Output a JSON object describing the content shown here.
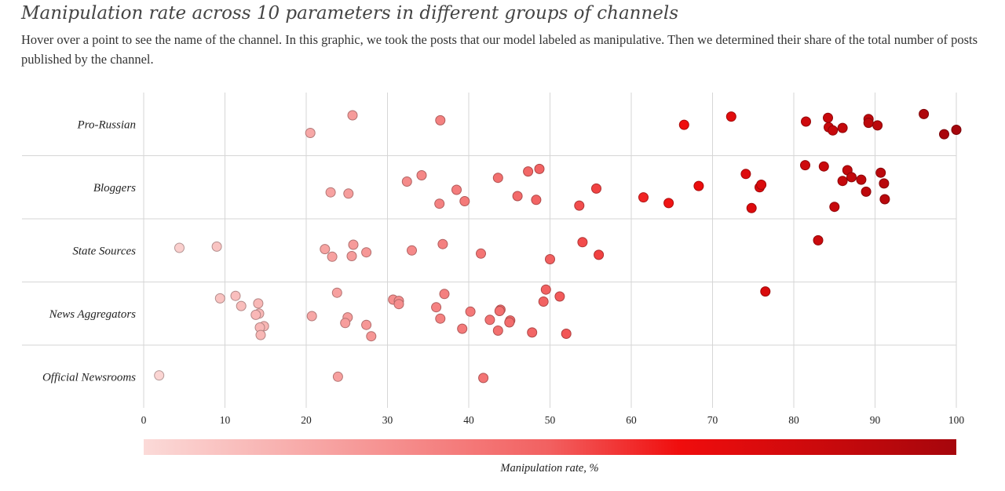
{
  "title": "Manipulation rate across 10 parameters in different groups of channels",
  "subtitle": "Hover over a point to see the name of the channel. In this graphic, we took the posts that our model labeled as manipulative. Then we determined their share of the total number of posts published by the channel.",
  "chart_data": {
    "type": "scatter",
    "categories": [
      "Pro-Russian",
      "Bloggers",
      "State Sources",
      "News Aggregators",
      "Official Newsrooms"
    ],
    "xlim": [
      0,
      100
    ],
    "xticks": [
      0,
      10,
      20,
      30,
      40,
      50,
      60,
      70,
      80,
      90,
      100
    ],
    "grid": true,
    "color_scale": {
      "label": "Manipulation rate, %",
      "domain": [
        0,
        100
      ],
      "colors": [
        "#fbdad8",
        "#f26060",
        "#f00d0d",
        "#a6060c"
      ]
    },
    "series": [
      {
        "category": "Pro-Russian",
        "points": [
          {
            "x": 20.5,
            "jitter": -0.14
          },
          {
            "x": 25.7,
            "jitter": 0.14
          },
          {
            "x": 36.5,
            "jitter": 0.06
          },
          {
            "x": 66.5,
            "jitter": -0.01
          },
          {
            "x": 72.3,
            "jitter": 0.12
          },
          {
            "x": 81.5,
            "jitter": 0.04
          },
          {
            "x": 84.2,
            "jitter": 0.1
          },
          {
            "x": 84.3,
            "jitter": -0.05
          },
          {
            "x": 84.8,
            "jitter": -0.1
          },
          {
            "x": 86.0,
            "jitter": -0.06
          },
          {
            "x": 89.2,
            "jitter": 0.08
          },
          {
            "x": 89.2,
            "jitter": 0.02
          },
          {
            "x": 90.3,
            "jitter": -0.02
          },
          {
            "x": 96.0,
            "jitter": 0.16
          },
          {
            "x": 98.5,
            "jitter": -0.16
          },
          {
            "x": 100.0,
            "jitter": -0.09
          }
        ]
      },
      {
        "category": "Bloggers",
        "points": [
          {
            "x": 23.0,
            "jitter": -0.08
          },
          {
            "x": 25.2,
            "jitter": -0.1
          },
          {
            "x": 32.4,
            "jitter": 0.09
          },
          {
            "x": 34.2,
            "jitter": 0.19
          },
          {
            "x": 36.4,
            "jitter": -0.26
          },
          {
            "x": 38.5,
            "jitter": -0.04
          },
          {
            "x": 39.5,
            "jitter": -0.22
          },
          {
            "x": 43.6,
            "jitter": 0.15
          },
          {
            "x": 46.0,
            "jitter": -0.14
          },
          {
            "x": 47.3,
            "jitter": 0.25
          },
          {
            "x": 48.3,
            "jitter": -0.2
          },
          {
            "x": 48.7,
            "jitter": 0.29
          },
          {
            "x": 53.6,
            "jitter": -0.29
          },
          {
            "x": 55.7,
            "jitter": -0.02
          },
          {
            "x": 61.5,
            "jitter": -0.16
          },
          {
            "x": 64.6,
            "jitter": -0.25
          },
          {
            "x": 68.3,
            "jitter": 0.02
          },
          {
            "x": 74.1,
            "jitter": 0.21
          },
          {
            "x": 74.8,
            "jitter": -0.33
          },
          {
            "x": 75.8,
            "jitter": 0.0
          },
          {
            "x": 76.0,
            "jitter": 0.04
          },
          {
            "x": 81.4,
            "jitter": 0.35
          },
          {
            "x": 83.7,
            "jitter": 0.33
          },
          {
            "x": 85.0,
            "jitter": -0.31
          },
          {
            "x": 86.0,
            "jitter": 0.1
          },
          {
            "x": 86.6,
            "jitter": 0.27
          },
          {
            "x": 87.1,
            "jitter": 0.16
          },
          {
            "x": 88.3,
            "jitter": 0.12
          },
          {
            "x": 88.9,
            "jitter": -0.07
          },
          {
            "x": 90.7,
            "jitter": 0.23
          },
          {
            "x": 91.1,
            "jitter": 0.06
          },
          {
            "x": 91.2,
            "jitter": -0.19
          }
        ]
      },
      {
        "category": "State Sources",
        "points": [
          {
            "x": 4.4,
            "jitter": 0.04
          },
          {
            "x": 9.0,
            "jitter": 0.06
          },
          {
            "x": 22.3,
            "jitter": 0.02
          },
          {
            "x": 23.2,
            "jitter": -0.1
          },
          {
            "x": 25.6,
            "jitter": -0.09
          },
          {
            "x": 25.8,
            "jitter": 0.09
          },
          {
            "x": 27.4,
            "jitter": -0.03
          },
          {
            "x": 33.0,
            "jitter": 0.0
          },
          {
            "x": 36.8,
            "jitter": 0.1
          },
          {
            "x": 41.5,
            "jitter": -0.05
          },
          {
            "x": 50.0,
            "jitter": -0.14
          },
          {
            "x": 54.0,
            "jitter": 0.13
          },
          {
            "x": 56.0,
            "jitter": -0.07
          },
          {
            "x": 83.0,
            "jitter": 0.16
          }
        ]
      },
      {
        "category": "News Aggregators",
        "points": [
          {
            "x": 9.4,
            "jitter": 0.24
          },
          {
            "x": 11.3,
            "jitter": 0.28
          },
          {
            "x": 12.0,
            "jitter": 0.12
          },
          {
            "x": 14.1,
            "jitter": 0.16
          },
          {
            "x": 14.2,
            "jitter": 0.0
          },
          {
            "x": 13.8,
            "jitter": -0.02
          },
          {
            "x": 14.8,
            "jitter": -0.2
          },
          {
            "x": 14.3,
            "jitter": -0.22
          },
          {
            "x": 14.4,
            "jitter": -0.34
          },
          {
            "x": 20.7,
            "jitter": -0.04
          },
          {
            "x": 23.8,
            "jitter": 0.33
          },
          {
            "x": 25.1,
            "jitter": -0.06
          },
          {
            "x": 24.8,
            "jitter": -0.15
          },
          {
            "x": 27.4,
            "jitter": -0.18
          },
          {
            "x": 28.0,
            "jitter": -0.36
          },
          {
            "x": 30.7,
            "jitter": 0.22
          },
          {
            "x": 31.4,
            "jitter": 0.2
          },
          {
            "x": 31.4,
            "jitter": 0.15
          },
          {
            "x": 36.0,
            "jitter": 0.1
          },
          {
            "x": 36.5,
            "jitter": -0.08
          },
          {
            "x": 37.0,
            "jitter": 0.31
          },
          {
            "x": 39.2,
            "jitter": -0.24
          },
          {
            "x": 40.2,
            "jitter": 0.03
          },
          {
            "x": 42.6,
            "jitter": -0.1
          },
          {
            "x": 43.9,
            "jitter": 0.06
          },
          {
            "x": 43.8,
            "jitter": 0.04
          },
          {
            "x": 43.6,
            "jitter": -0.27
          },
          {
            "x": 45.1,
            "jitter": -0.11
          },
          {
            "x": 45.0,
            "jitter": -0.14
          },
          {
            "x": 47.8,
            "jitter": -0.3
          },
          {
            "x": 49.2,
            "jitter": 0.19
          },
          {
            "x": 49.5,
            "jitter": 0.38
          },
          {
            "x": 51.2,
            "jitter": 0.27
          },
          {
            "x": 52.0,
            "jitter": -0.32
          },
          {
            "x": 76.5,
            "jitter": 0.35
          }
        ]
      },
      {
        "category": "Official Newsrooms",
        "points": [
          {
            "x": 1.9,
            "jitter": 0.02
          },
          {
            "x": 23.9,
            "jitter": 0.0
          },
          {
            "x": 41.8,
            "jitter": -0.02
          }
        ]
      }
    ]
  }
}
